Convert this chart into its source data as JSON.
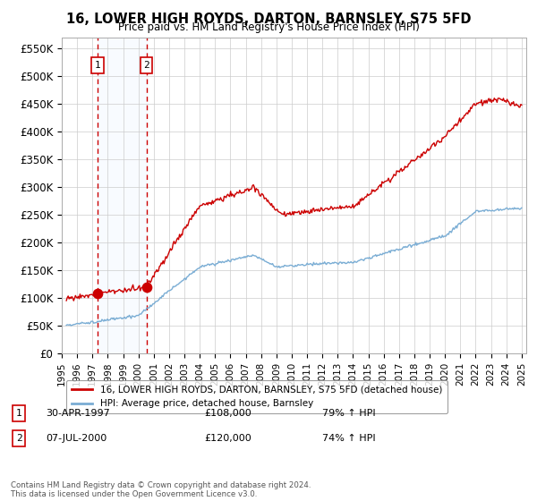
{
  "title": "16, LOWER HIGH ROYDS, DARTON, BARNSLEY, S75 5FD",
  "subtitle": "Price paid vs. HM Land Registry's House Price Index (HPI)",
  "ylabel_ticks": [
    "£0",
    "£50K",
    "£100K",
    "£150K",
    "£200K",
    "£250K",
    "£300K",
    "£350K",
    "£400K",
    "£450K",
    "£500K",
    "£550K"
  ],
  "ytick_values": [
    0,
    50000,
    100000,
    150000,
    200000,
    250000,
    300000,
    350000,
    400000,
    450000,
    500000,
    550000
  ],
  "ylim": [
    0,
    570000
  ],
  "xlim_start": 1995.3,
  "xlim_end": 2025.3,
  "legend_line1": "16, LOWER HIGH ROYDS, DARTON, BARNSLEY, S75 5FD (detached house)",
  "legend_line2": "HPI: Average price, detached house, Barnsley",
  "sale1_label": "1",
  "sale1_date": "30-APR-1997",
  "sale1_price": "£108,000",
  "sale1_hpi": "79% ↑ HPI",
  "sale1_year": 1997.33,
  "sale1_value": 108000,
  "sale2_label": "2",
  "sale2_date": "07-JUL-2000",
  "sale2_price": "£120,000",
  "sale2_hpi": "74% ↑ HPI",
  "sale2_year": 2000.52,
  "sale2_value": 120000,
  "line_color_red": "#cc0000",
  "line_color_blue": "#7aadd4",
  "background_color": "#ffffff",
  "grid_color": "#cccccc",
  "shade_color": "#ddeeff",
  "footer": "Contains HM Land Registry data © Crown copyright and database right 2024.\nThis data is licensed under the Open Government Licence v3.0."
}
